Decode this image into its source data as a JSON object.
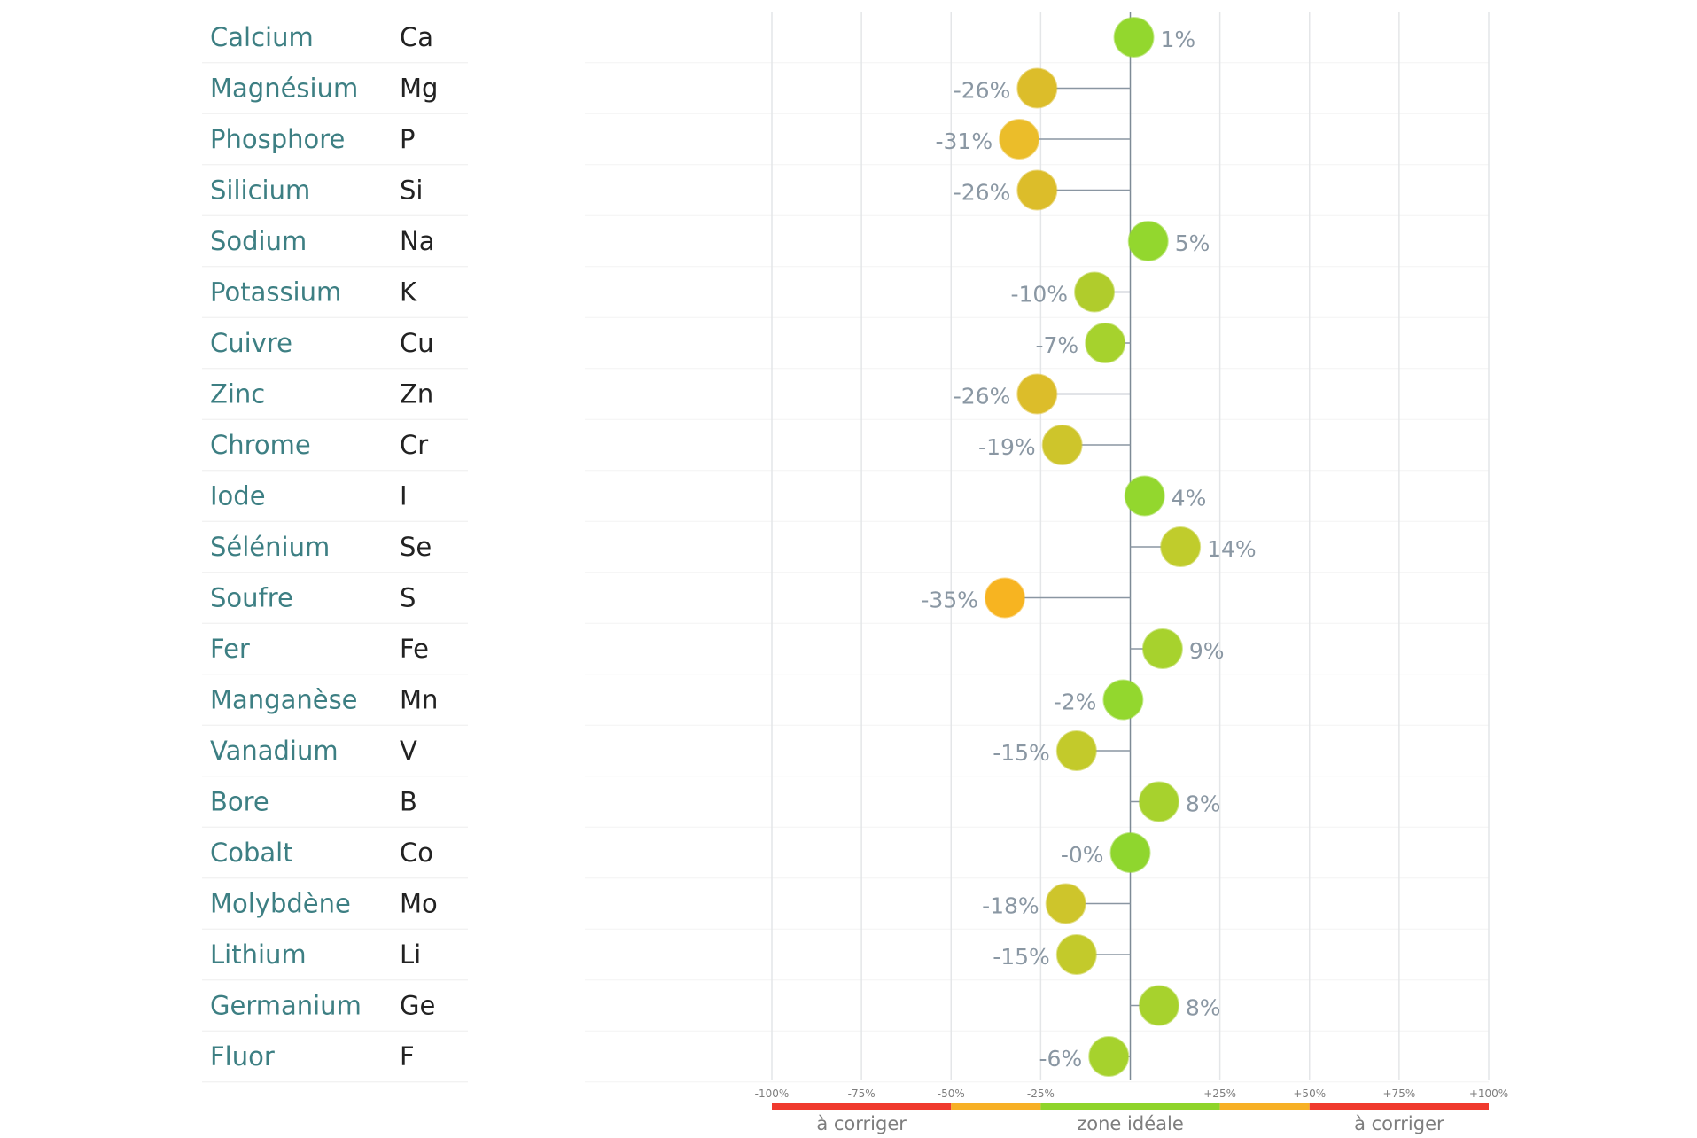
{
  "chart_data": {
    "type": "scatter",
    "title": "",
    "xlabel": "",
    "ylabel": "",
    "xlim": [
      -100,
      100
    ],
    "x_ticks": [
      "-100%",
      "-75%",
      "-50%",
      "-25%",
      "+25%",
      "+50%",
      "+75%",
      "+100%"
    ],
    "x_tick_values": [
      -100,
      -75,
      -50,
      -25,
      25,
      50,
      75,
      100
    ],
    "grid": true,
    "zones": [
      {
        "from": -100,
        "to": -50,
        "color": "#f03a2e"
      },
      {
        "from": -50,
        "to": -25,
        "color": "#f7b025"
      },
      {
        "from": -25,
        "to": 25,
        "color": "#8fd42a"
      },
      {
        "from": 25,
        "to": 50,
        "color": "#f7b025"
      },
      {
        "from": 50,
        "to": 100,
        "color": "#f03a2e"
      }
    ],
    "zone_labels": [
      {
        "text": "à corriger",
        "at": -75
      },
      {
        "text": "zone idéale",
        "at": 0
      },
      {
        "text": "à corriger",
        "at": 75
      }
    ],
    "rows": [
      {
        "name": "Calcium",
        "symbol": "Ca",
        "value": 1,
        "label": "1%",
        "color": "#93d72e"
      },
      {
        "name": "Magnésium",
        "symbol": "Mg",
        "value": -26,
        "label": "-26%",
        "color": "#dcbd2a"
      },
      {
        "name": "Phosphore",
        "symbol": "P",
        "value": -31,
        "label": "-31%",
        "color": "#ebbd2a"
      },
      {
        "name": "Silicium",
        "symbol": "Si",
        "value": -26,
        "label": "-26%",
        "color": "#dcbd2a"
      },
      {
        "name": "Sodium",
        "symbol": "Na",
        "value": 5,
        "label": "5%",
        "color": "#93d72e"
      },
      {
        "name": "Potassium",
        "symbol": "K",
        "value": -10,
        "label": "-10%",
        "color": "#b0cc2c"
      },
      {
        "name": "Cuivre",
        "symbol": "Cu",
        "value": -7,
        "label": "-7%",
        "color": "#a6d22d"
      },
      {
        "name": "Zinc",
        "symbol": "Zn",
        "value": -26,
        "label": "-26%",
        "color": "#dcbd2a"
      },
      {
        "name": "Chrome",
        "symbol": "Cr",
        "value": -19,
        "label": "-19%",
        "color": "#cec52b"
      },
      {
        "name": "Iode",
        "symbol": "I",
        "value": 4,
        "label": "4%",
        "color": "#93d72e"
      },
      {
        "name": "Sélénium",
        "symbol": "Se",
        "value": 14,
        "label": "14%",
        "color": "#c0cc2c"
      },
      {
        "name": "Soufre",
        "symbol": "S",
        "value": -35,
        "label": "-35%",
        "color": "#f7b421"
      },
      {
        "name": "Fer",
        "symbol": "Fe",
        "value": 9,
        "label": "9%",
        "color": "#a7d22d"
      },
      {
        "name": "Manganèse",
        "symbol": "Mn",
        "value": -2,
        "label": "-2%",
        "color": "#93d72e"
      },
      {
        "name": "Vanadium",
        "symbol": "V",
        "value": -15,
        "label": "-15%",
        "color": "#c3ca2b"
      },
      {
        "name": "Bore",
        "symbol": "B",
        "value": 8,
        "label": "8%",
        "color": "#a7d22d"
      },
      {
        "name": "Cobalt",
        "symbol": "Co",
        "value": 0,
        "label": "-0%",
        "color": "#8fd62e"
      },
      {
        "name": "Molybdène",
        "symbol": "Mo",
        "value": -18,
        "label": "-18%",
        "color": "#cec52b"
      },
      {
        "name": "Lithium",
        "symbol": "Li",
        "value": -15,
        "label": "-15%",
        "color": "#c3ca2b"
      },
      {
        "name": "Germanium",
        "symbol": "Ge",
        "value": 8,
        "label": "8%",
        "color": "#a7d22d"
      },
      {
        "name": "Fluor",
        "symbol": "F",
        "value": -6,
        "label": "-6%",
        "color": "#a6d22d"
      }
    ]
  }
}
